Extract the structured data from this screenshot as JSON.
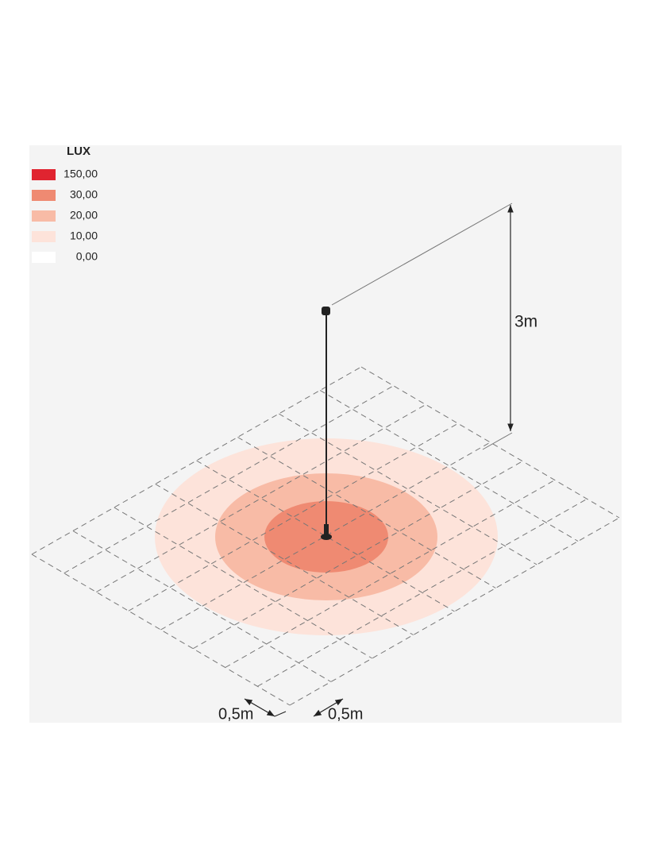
{
  "legend": {
    "title": "LUX",
    "items": [
      {
        "label": "150,00",
        "color": "#e02430"
      },
      {
        "label": "30,00",
        "color": "#ef8a72"
      },
      {
        "label": "20,00",
        "color": "#f8bba6"
      },
      {
        "label": "10,00",
        "color": "#fde3da"
      },
      {
        "label": "0,00",
        "color": "#ffffff"
      }
    ]
  },
  "dimensions": {
    "height": "3m",
    "grid_x": "0,5m",
    "grid_y": "0,5m"
  }
}
